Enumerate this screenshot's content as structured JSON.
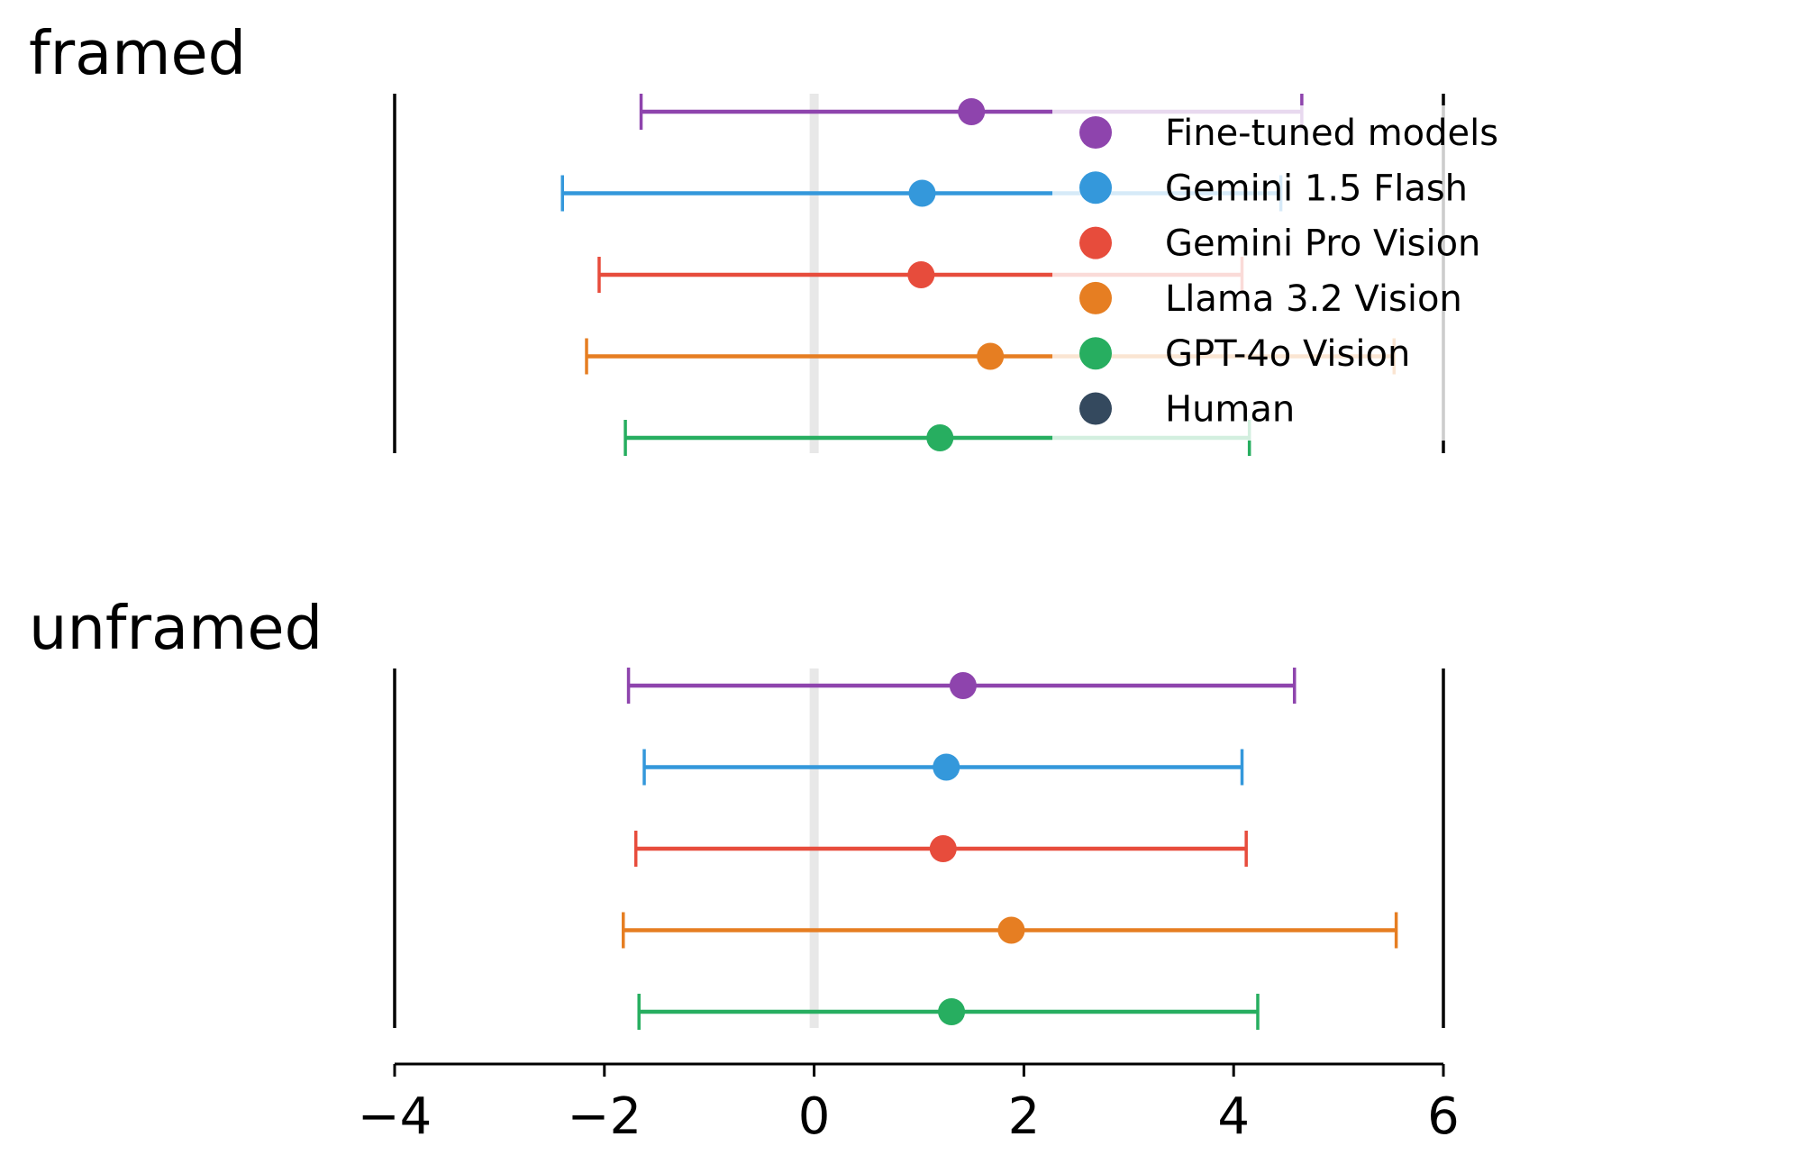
{
  "chart_data": {
    "type": "errorbar",
    "panels": [
      {
        "title": "framed",
        "rows": [
          {
            "series": "Fine-tuned models",
            "mean": 1.5,
            "low": -1.65,
            "high": 4.65
          },
          {
            "series": "Gemini 1.5 Flash",
            "mean": 1.03,
            "low": -2.4,
            "high": 4.45
          },
          {
            "series": "Gemini Pro Vision",
            "mean": 1.02,
            "low": -2.05,
            "high": 4.08
          },
          {
            "series": "Llama 3.2 Vision",
            "mean": 1.68,
            "low": -2.17,
            "high": 5.53
          },
          {
            "series": "GPT-4o Vision",
            "mean": 1.2,
            "low": -1.8,
            "high": 4.15
          }
        ]
      },
      {
        "title": "unframed",
        "rows": [
          {
            "series": "Fine-tuned models",
            "mean": 1.42,
            "low": -1.77,
            "high": 4.58
          },
          {
            "series": "Gemini 1.5 Flash",
            "mean": 1.26,
            "low": -1.62,
            "high": 4.08
          },
          {
            "series": "Gemini Pro Vision",
            "mean": 1.23,
            "low": -1.7,
            "high": 4.12
          },
          {
            "series": "Llama 3.2 Vision",
            "mean": 1.88,
            "low": -1.82,
            "high": 5.55
          },
          {
            "series": "GPT-4o Vision",
            "mean": 1.31,
            "low": -1.67,
            "high": 4.23
          }
        ]
      }
    ],
    "xlim": [
      -4,
      6
    ],
    "xticks": [
      -4,
      -2,
      0,
      2,
      4,
      6
    ],
    "xtick_labels": [
      "−4",
      "−2",
      "0",
      "2",
      "4",
      "6"
    ],
    "reference_line_x": 0,
    "boundary_lines_x": [
      -4,
      6
    ],
    "xlabel": "",
    "ylabel": "",
    "legend": {
      "placement": "top-right (inside framed panel)",
      "entries": [
        {
          "label": "Fine-tuned models",
          "color": "#8e44ad"
        },
        {
          "label": "Gemini 1.5 Flash",
          "color": "#3498db"
        },
        {
          "label": "Gemini Pro Vision",
          "color": "#e74c3c"
        },
        {
          "label": "Llama 3.2 Vision",
          "color": "#e67e22"
        },
        {
          "label": "GPT-4o Vision",
          "color": "#27ae60"
        },
        {
          "label": "Human",
          "color": "#34495e"
        }
      ]
    },
    "grid": false
  }
}
